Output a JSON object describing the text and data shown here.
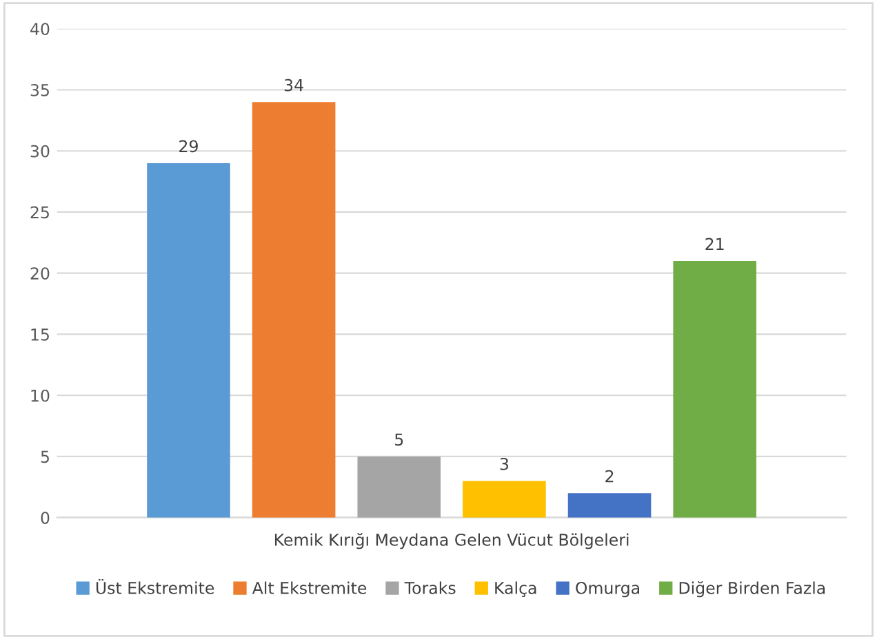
{
  "chart_data": {
    "type": "bar",
    "xlabel": "Kemik Kırığı Meydana Gelen Vücut Bölgeleri",
    "categories": [
      null
    ],
    "series": [
      {
        "name": "Üst Ekstremite",
        "color": "#5b9bd5",
        "values": [
          29
        ]
      },
      {
        "name": "Alt Ekstremite",
        "color": "#ed7d31",
        "values": [
          34
        ]
      },
      {
        "name": "Toraks",
        "color": "#a5a5a5",
        "values": [
          5
        ]
      },
      {
        "name": "Kalça",
        "color": "#ffc000",
        "values": [
          3
        ]
      },
      {
        "name": "Omurga",
        "color": "#4472c4",
        "values": [
          2
        ]
      },
      {
        "name": "Diğer Birden Fazla",
        "color": "#70ad47",
        "values": [
          21
        ]
      }
    ],
    "ylim": [
      0,
      40
    ],
    "yticks": [
      0,
      5,
      10,
      15,
      20,
      25,
      30,
      35,
      40
    ],
    "grid": "y",
    "legend": "bottom",
    "data_labels": true,
    "tick_labels": "y"
  }
}
